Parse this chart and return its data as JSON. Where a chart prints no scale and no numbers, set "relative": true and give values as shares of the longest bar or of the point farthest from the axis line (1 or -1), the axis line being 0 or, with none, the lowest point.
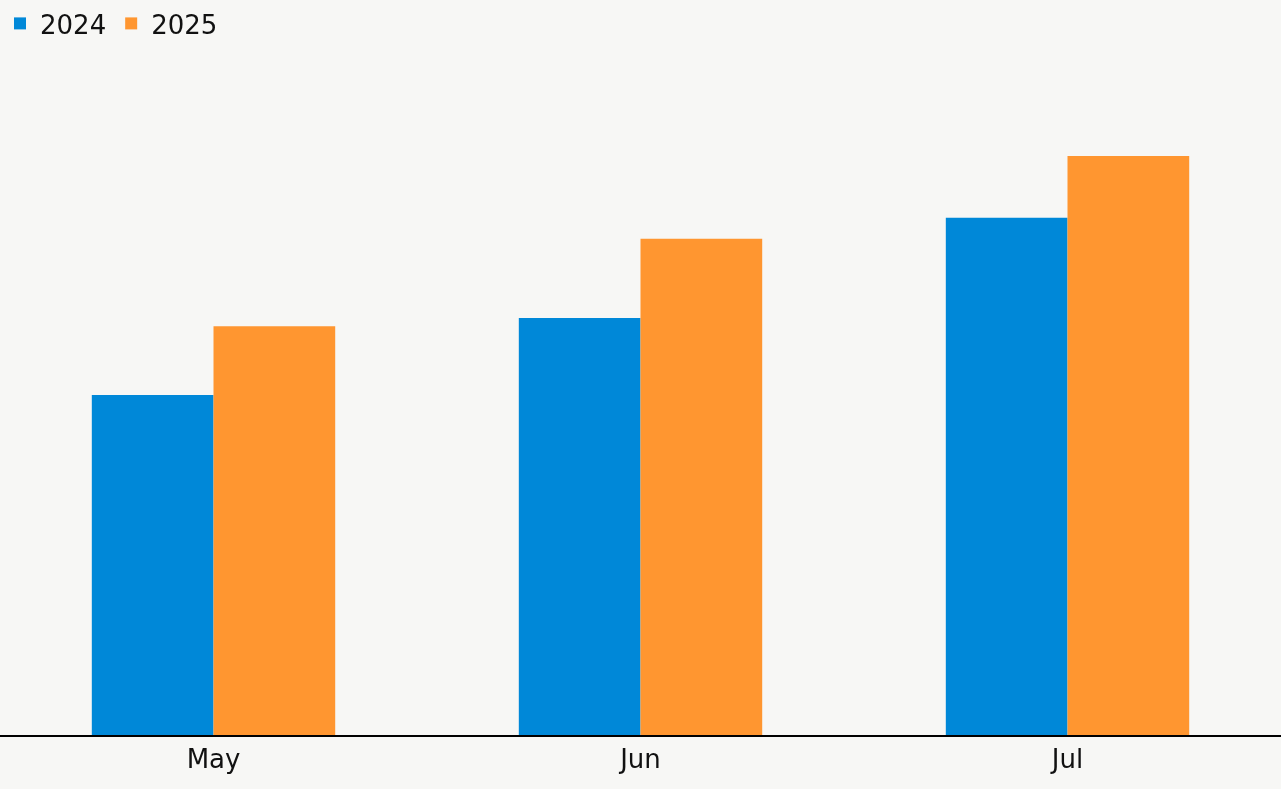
{
  "chart_data": {
    "type": "bar",
    "relative": true,
    "legend": "top left",
    "grid": false,
    "categories": [
      "May",
      "Jun",
      "Jul"
    ],
    "series": [
      {
        "name": "2024",
        "color": "#0088d8",
        "values": [
          0.587,
          0.72,
          0.893
        ]
      },
      {
        "name": "2025",
        "color": "#ff9630",
        "values": [
          0.706,
          0.857,
          1
        ]
      }
    ]
  }
}
